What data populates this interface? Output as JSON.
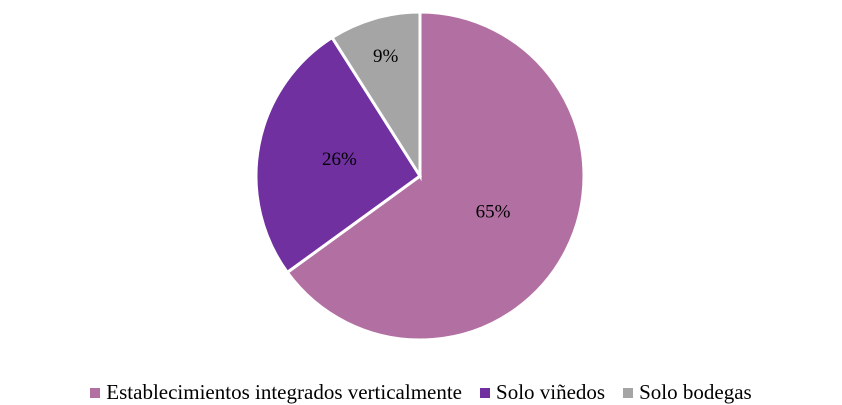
{
  "chart_data": {
    "type": "pie",
    "categories": [
      "Establecimientos integrados verticalmente",
      "Solo viñedos",
      "Solo bodegas"
    ],
    "values": [
      65,
      26,
      9
    ],
    "value_labels": [
      "65%",
      "26%",
      "9%"
    ],
    "colors": [
      "#b270a2",
      "#7030a0",
      "#a5a5a5"
    ],
    "legend": "bottom"
  }
}
